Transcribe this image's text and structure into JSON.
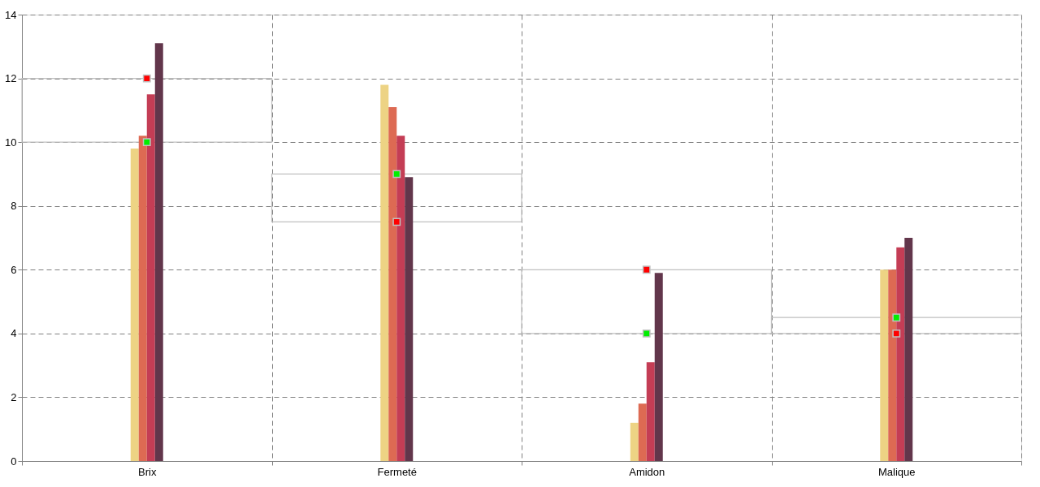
{
  "chart_data": {
    "type": "bar",
    "categories": [
      "Brix",
      "Fermeté",
      "Amidon",
      "Malique"
    ],
    "series": [
      {
        "color": "#c0c0c0",
        "base": [
          10,
          7.5,
          4,
          4
        ],
        "values": [
          2,
          1.5,
          2,
          0.5
        ]
      },
      {
        "color": "#edd384",
        "values": [
          9.8,
          11.8,
          1.2,
          6.0
        ]
      },
      {
        "color": "#dd6a53",
        "values": [
          10.2,
          11.1,
          1.8,
          6.0
        ]
      },
      {
        "color": "#c43d55",
        "values": [
          11.5,
          10.2,
          3.1,
          6.7
        ]
      },
      {
        "color": "#62364b",
        "values": [
          13.1,
          8.9,
          5.9,
          7.0
        ]
      },
      {
        "type": "scatter",
        "marker": "square",
        "color": "#00ee00",
        "values": [
          10,
          9,
          4,
          4.5
        ]
      },
      {
        "type": "scatter",
        "marker": "square",
        "color": "#ff0000",
        "values": [
          12,
          7.5,
          6,
          4
        ]
      }
    ],
    "ylim": [
      0,
      14
    ],
    "yticks": [
      0,
      2,
      4,
      6,
      8,
      10,
      12,
      14
    ],
    "grid": true
  }
}
